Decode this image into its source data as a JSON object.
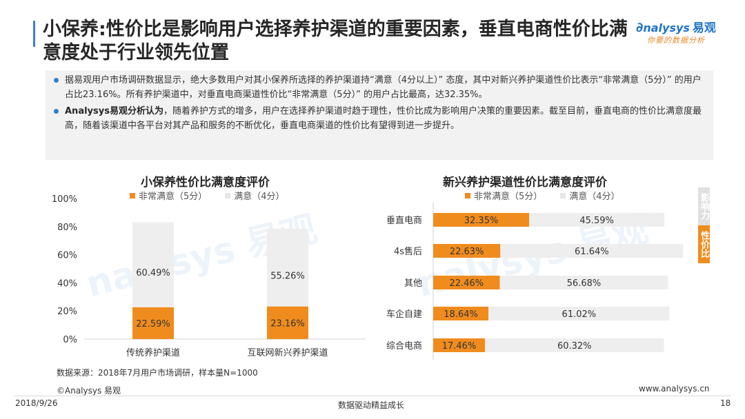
{
  "header": {
    "title": "小保养:性价比是影响用户选择养护渠道的重要因素，垂直电商性价比满意度处于行业领先位置"
  },
  "logo": {
    "brand": "nalysys",
    "brand_cn": "易观",
    "tagline": "你要的数据分析"
  },
  "summary": {
    "bullet1": "据易观用户市场调研数据显示，绝大多数用户对其小保养所选择的养护渠道持“满意（4分以上）” 态度，其中对新兴养护渠道性价比表示“非常满意（5分）” 的用户占比23.16%。所有养护渠道中，对垂直电商渠道性价比“非常满意（5分）” 的用户占比最高，达32.35%。",
    "bullet2_bold": "Analysys易观分析认为",
    "bullet2_rest": "，随着养护方式的增多，用户在选择养护渠道时趋于理性，性价比成为影响用户决策的重要因素。截至目前，垂直电商的性价比满意度最高，随着该渠道中各平台对其产品和服务的不断优化，垂直电商渠道的性价比有望得到进一步提升。"
  },
  "colors": {
    "very_satisfied": "#f08c1e",
    "satisfied": "#eeeeee",
    "accent": "#2f7fd3"
  },
  "chart_data": [
    {
      "type": "bar",
      "stacked": true,
      "orientation": "vertical",
      "title": "小保养性价比满意度评价",
      "categories": [
        "传统养护渠道",
        "互联网新兴养护渠道"
      ],
      "series": [
        {
          "name": "非常满意（5分）",
          "values": [
            22.59,
            23.16
          ]
        },
        {
          "name": "满意（4分）",
          "values": [
            60.49,
            55.26
          ]
        }
      ],
      "data_labels": [
        [
          "22.59%",
          "23.16%"
        ],
        [
          "60.49%",
          "55.26%"
        ]
      ],
      "yticks": [
        "0%",
        "20%",
        "40%",
        "60%",
        "80%",
        "100%"
      ],
      "ylim": [
        0,
        100
      ],
      "legend_position": "top"
    },
    {
      "type": "bar",
      "stacked": true,
      "orientation": "horizontal",
      "title": "新兴养护渠道性价比满意度评价",
      "categories": [
        "垂直电商",
        "4s售后",
        "其他",
        "车企自建",
        "综合电商"
      ],
      "series": [
        {
          "name": "非常满意（5分）",
          "values": [
            32.35,
            22.63,
            22.46,
            18.64,
            17.46
          ]
        },
        {
          "name": "满意（4分）",
          "values": [
            45.59,
            61.64,
            56.68,
            61.02,
            60.32
          ]
        }
      ],
      "data_labels": [
        [
          "32.35%",
          "22.63%",
          "22.46%",
          "18.64%",
          "17.46%"
        ],
        [
          "45.59%",
          "61.64%",
          "56.68%",
          "61.02%",
          "60.32%"
        ]
      ],
      "xlim": [
        0,
        100
      ],
      "legend_position": "top"
    }
  ],
  "side_tag": {
    "top": "影响力",
    "bottom": "性价比"
  },
  "footer": {
    "source": "数据来源：2018年7月用户市场调研，样本量N=1000",
    "copyright": "©Analysys 易观",
    "website": "www.analysys.cn",
    "date": "2018/9/26",
    "slogan": "数据驱动精益成长",
    "page": "18"
  }
}
